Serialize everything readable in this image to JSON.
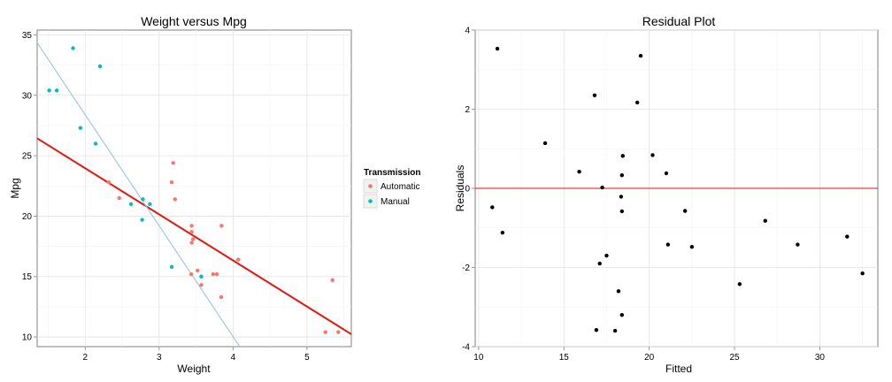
{
  "chart_data": [
    {
      "type": "scatter",
      "title": "Weight versus Mpg",
      "xlabel": "Weight",
      "ylabel": "Mpg",
      "xlim": [
        1.35,
        5.6
      ],
      "ylim": [
        9.2,
        35.4
      ],
      "xticks": [
        2,
        3,
        4,
        5
      ],
      "yticks": [
        10,
        15,
        20,
        25,
        30,
        35
      ],
      "grid": true,
      "legend": {
        "title": "Transmission",
        "placement": "right",
        "entries": [
          {
            "label": "Automatic",
            "color": "#F8766D"
          },
          {
            "label": "Manual",
            "color": "#00BFC4"
          }
        ]
      },
      "series": [
        {
          "name": "Automatic",
          "color": "#F8766D",
          "points": [
            [
              2.46,
              21.5
            ],
            [
              3.17,
              22.8
            ],
            [
              3.19,
              24.4
            ],
            [
              3.215,
              21.4
            ],
            [
              3.44,
              18.7
            ],
            [
              3.44,
              19.2
            ],
            [
              3.44,
              17.8
            ],
            [
              3.46,
              18.1
            ],
            [
              3.52,
              15.5
            ],
            [
              3.57,
              14.3
            ],
            [
              3.73,
              15.2
            ],
            [
              3.78,
              15.2
            ],
            [
              3.84,
              13.3
            ],
            [
              3.845,
              19.2
            ],
            [
              4.07,
              16.4
            ],
            [
              3.435,
              15.2
            ],
            [
              3.57,
              15.0
            ],
            [
              5.25,
              10.4
            ],
            [
              5.345,
              14.7
            ],
            [
              5.424,
              10.4
            ],
            [
              2.32,
              22.8
            ]
          ]
        },
        {
          "name": "Manual",
          "color": "#00BFC4",
          "points": [
            [
              1.513,
              30.4
            ],
            [
              1.615,
              30.4
            ],
            [
              1.835,
              33.9
            ],
            [
              1.935,
              27.3
            ],
            [
              2.14,
              26.0
            ],
            [
              2.2,
              32.4
            ],
            [
              2.62,
              21.0
            ],
            [
              2.77,
              19.7
            ],
            [
              2.78,
              21.4
            ],
            [
              2.875,
              21.0
            ],
            [
              3.17,
              15.8
            ],
            [
              3.57,
              15.0
            ]
          ]
        }
      ],
      "lines": [
        {
          "name": "Automatic fit",
          "color": "#E8150F",
          "x": [
            1.35,
            5.6
          ],
          "y": [
            26.44,
            10.23
          ]
        },
        {
          "name": "Manual fit",
          "color": "#9ECAE1",
          "x": [
            1.35,
            4.09
          ],
          "y": [
            34.35,
            9.2
          ]
        }
      ]
    },
    {
      "type": "scatter",
      "title": "Residual Plot",
      "xlabel": "Fitted",
      "ylabel": "Residuals",
      "xlim": [
        9.8,
        33.4
      ],
      "ylim": [
        -4,
        4
      ],
      "xticks": [
        10,
        15,
        20,
        25,
        30
      ],
      "yticks": [
        -4,
        -2,
        0,
        2,
        4
      ],
      "grid": true,
      "hline": {
        "y": 0,
        "color": "#E8150F"
      },
      "series": [
        {
          "color": "#000000",
          "points": [
            [
              10.8,
              -0.48
            ],
            [
              11.1,
              3.53
            ],
            [
              11.4,
              -1.12
            ],
            [
              13.9,
              1.14
            ],
            [
              15.9,
              0.42
            ],
            [
              16.8,
              2.35
            ],
            [
              16.9,
              -3.58
            ],
            [
              17.1,
              -1.9
            ],
            [
              17.25,
              0.02
            ],
            [
              17.5,
              -1.7
            ],
            [
              18.0,
              -3.6
            ],
            [
              18.2,
              -2.6
            ],
            [
              18.35,
              -0.21
            ],
            [
              18.4,
              -3.2
            ],
            [
              18.4,
              -0.58
            ],
            [
              18.4,
              0.33
            ],
            [
              18.45,
              0.82
            ],
            [
              19.3,
              2.17
            ],
            [
              19.5,
              3.35
            ],
            [
              20.2,
              0.84
            ],
            [
              21.0,
              0.38
            ],
            [
              21.1,
              -1.42
            ],
            [
              22.1,
              -0.57
            ],
            [
              22.5,
              -1.48
            ],
            [
              25.3,
              -2.42
            ],
            [
              26.8,
              -0.82
            ],
            [
              28.7,
              -1.42
            ],
            [
              31.6,
              -1.22
            ],
            [
              32.5,
              -2.15
            ]
          ]
        }
      ]
    }
  ]
}
